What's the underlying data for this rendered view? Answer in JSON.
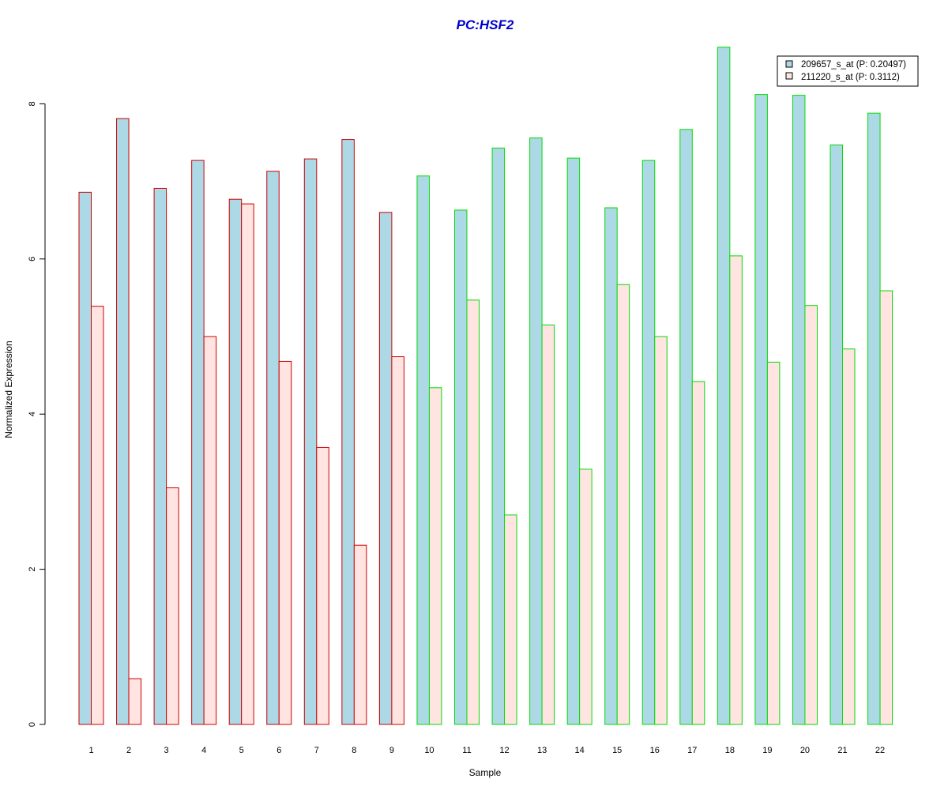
{
  "chart_data": {
    "type": "bar",
    "title": "PC:HSF2",
    "xlabel": "Sample",
    "ylabel": "Normalized Expression",
    "ylim": [
      0,
      8.8
    ],
    "yticks": [
      0,
      2,
      4,
      6,
      8
    ],
    "grid": false,
    "legend_position": "top-right",
    "categories": [
      "1",
      "2",
      "3",
      "4",
      "5",
      "6",
      "7",
      "8",
      "9",
      "10",
      "11",
      "12",
      "13",
      "14",
      "15",
      "16",
      "17",
      "18",
      "19",
      "20",
      "21",
      "22"
    ],
    "series": [
      {
        "name": "209657_s_at (P: 0.20497)",
        "fill": "#add8e6",
        "values": [
          6.86,
          7.81,
          6.91,
          7.27,
          6.77,
          7.13,
          7.29,
          7.54,
          6.6,
          7.07,
          6.63,
          7.43,
          7.56,
          7.3,
          6.66,
          7.27,
          7.67,
          8.73,
          8.12,
          8.11,
          7.47,
          7.88
        ]
      },
      {
        "name": "211220_s_at (P: 0.3112)",
        "fill": "#ffe4e1",
        "values": [
          5.39,
          0.59,
          3.05,
          5.0,
          6.71,
          4.68,
          3.57,
          2.31,
          4.74,
          4.34,
          5.47,
          2.7,
          5.15,
          3.29,
          5.67,
          5.0,
          4.42,
          6.04,
          4.67,
          5.4,
          4.84,
          5.59
        ]
      }
    ],
    "group_outline_colors": [
      "#cc0000",
      "#cc0000",
      "#cc0000",
      "#cc0000",
      "#cc0000",
      "#cc0000",
      "#cc0000",
      "#cc0000",
      "#cc0000",
      "#00dd00",
      "#00dd00",
      "#00dd00",
      "#00dd00",
      "#00dd00",
      "#00dd00",
      "#00dd00",
      "#00dd00",
      "#00dd00",
      "#00dd00",
      "#00dd00",
      "#00dd00",
      "#00dd00"
    ],
    "title_color": "#0000cd"
  }
}
